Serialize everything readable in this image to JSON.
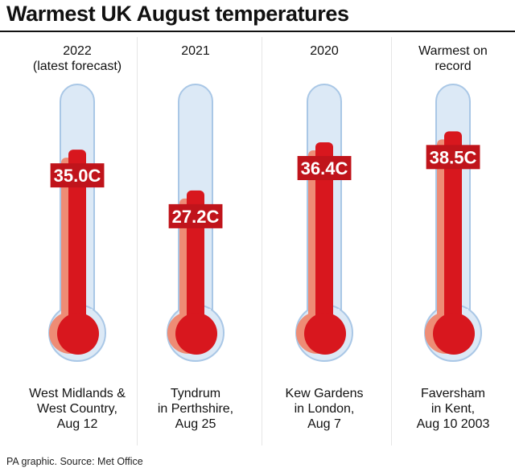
{
  "title": "Warmest UK August temperatures",
  "source": "PA graphic. Source: Met Office",
  "colors": {
    "mercury": "#d8171e",
    "mercury_shadow": "#ee8c75",
    "tube": "#dce9f6",
    "tube_edge": "#a9c7e6",
    "label_bg": "#c0141b"
  },
  "chart_data": {
    "type": "bar",
    "title": "Warmest UK August temperatures",
    "unit": "C",
    "categories": [
      "2022 (latest forecast)",
      "2021",
      "2020",
      "Warmest on record"
    ],
    "values": [
      35.0,
      27.2,
      36.4,
      38.5
    ],
    "ylim": [
      0,
      45
    ],
    "grid": false,
    "items": [
      {
        "heading": [
          "2022",
          "(latest forecast)"
        ],
        "value": 35.0,
        "value_label": "35.0C",
        "location": [
          "West Midlands &",
          "West Country,",
          "Aug 12"
        ]
      },
      {
        "heading": [
          "2021"
        ],
        "value": 27.2,
        "value_label": "27.2C",
        "location": [
          "Tyndrum",
          "in Perthshire,",
          "Aug 25"
        ]
      },
      {
        "heading": [
          "2020"
        ],
        "value": 36.4,
        "value_label": "36.4C",
        "location": [
          "Kew Gardens",
          "in London,",
          "Aug 7"
        ]
      },
      {
        "heading": [
          "Warmest on",
          "record"
        ],
        "value": 38.5,
        "value_label": "38.5C",
        "location": [
          "Faversham",
          "in Kent,",
          "Aug 10 2003"
        ]
      }
    ]
  }
}
